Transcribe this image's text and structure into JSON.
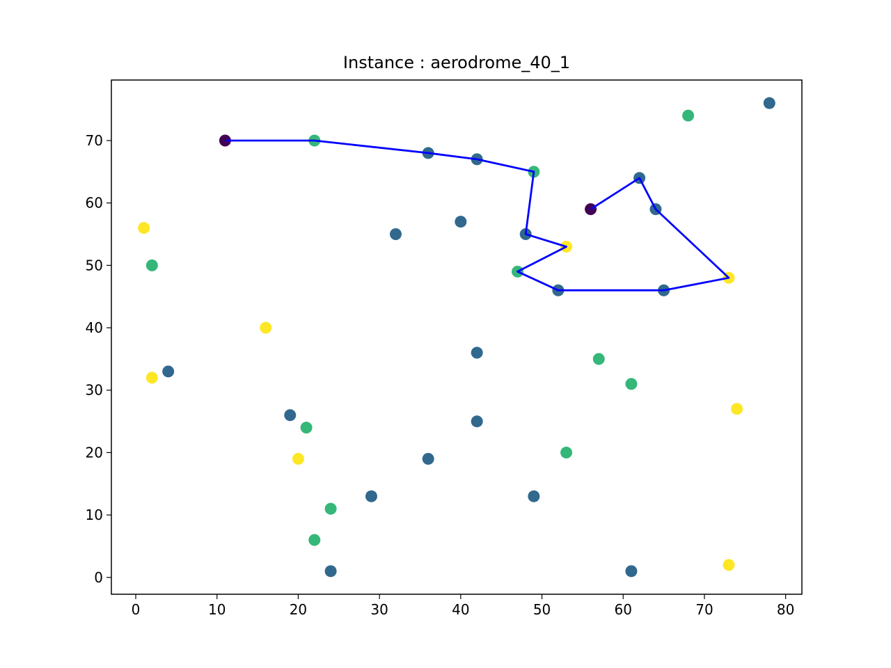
{
  "chart_data": {
    "type": "scatter",
    "title": "Instance : aerodrome_40_1",
    "xlabel": "",
    "ylabel": "",
    "xlim": [
      -3,
      82
    ],
    "ylim": [
      -2.7,
      79.7
    ],
    "xticks": [
      0,
      10,
      20,
      30,
      40,
      50,
      60,
      70,
      80
    ],
    "yticks": [
      0,
      10,
      20,
      30,
      40,
      50,
      60,
      70
    ],
    "grid": false,
    "legend": "none",
    "colors": {
      "yellow": "#fde725",
      "green": "#35b779",
      "blue": "#31688e",
      "purple": "#440154",
      "route": "#0000ff"
    },
    "points": [
      {
        "x": 11,
        "y": 70,
        "c": "purple"
      },
      {
        "x": 22,
        "y": 70,
        "c": "green"
      },
      {
        "x": 36,
        "y": 68,
        "c": "blue"
      },
      {
        "x": 42,
        "y": 67,
        "c": "blue"
      },
      {
        "x": 49,
        "y": 65,
        "c": "green"
      },
      {
        "x": 48,
        "y": 55,
        "c": "blue"
      },
      {
        "x": 53,
        "y": 53,
        "c": "yellow"
      },
      {
        "x": 47,
        "y": 49,
        "c": "green"
      },
      {
        "x": 52,
        "y": 46,
        "c": "blue"
      },
      {
        "x": 65,
        "y": 46,
        "c": "blue"
      },
      {
        "x": 73,
        "y": 48,
        "c": "yellow"
      },
      {
        "x": 64,
        "y": 59,
        "c": "blue"
      },
      {
        "x": 62,
        "y": 64,
        "c": "blue"
      },
      {
        "x": 56,
        "y": 59,
        "c": "purple"
      },
      {
        "x": 68,
        "y": 74,
        "c": "green"
      },
      {
        "x": 78,
        "y": 76,
        "c": "blue"
      },
      {
        "x": 1,
        "y": 56,
        "c": "yellow"
      },
      {
        "x": 2,
        "y": 50,
        "c": "green"
      },
      {
        "x": 32,
        "y": 55,
        "c": "blue"
      },
      {
        "x": 40,
        "y": 57,
        "c": "blue"
      },
      {
        "x": 16,
        "y": 40,
        "c": "yellow"
      },
      {
        "x": 2,
        "y": 32,
        "c": "yellow"
      },
      {
        "x": 4,
        "y": 33,
        "c": "blue"
      },
      {
        "x": 42,
        "y": 36,
        "c": "blue"
      },
      {
        "x": 57,
        "y": 35,
        "c": "green"
      },
      {
        "x": 61,
        "y": 31,
        "c": "green"
      },
      {
        "x": 74,
        "y": 27,
        "c": "yellow"
      },
      {
        "x": 19,
        "y": 26,
        "c": "blue"
      },
      {
        "x": 21,
        "y": 24,
        "c": "green"
      },
      {
        "x": 42,
        "y": 25,
        "c": "blue"
      },
      {
        "x": 20,
        "y": 19,
        "c": "yellow"
      },
      {
        "x": 36,
        "y": 19,
        "c": "blue"
      },
      {
        "x": 53,
        "y": 20,
        "c": "green"
      },
      {
        "x": 29,
        "y": 13,
        "c": "blue"
      },
      {
        "x": 49,
        "y": 13,
        "c": "blue"
      },
      {
        "x": 24,
        "y": 11,
        "c": "green"
      },
      {
        "x": 22,
        "y": 6,
        "c": "green"
      },
      {
        "x": 24,
        "y": 1,
        "c": "blue"
      },
      {
        "x": 61,
        "y": 1,
        "c": "blue"
      },
      {
        "x": 73,
        "y": 2,
        "c": "yellow"
      }
    ],
    "route": [
      [
        11,
        70
      ],
      [
        22,
        70
      ],
      [
        36,
        68
      ],
      [
        42,
        67
      ],
      [
        49,
        65
      ],
      [
        48,
        55
      ],
      [
        53,
        53
      ],
      [
        47,
        49
      ],
      [
        52,
        46
      ],
      [
        65,
        46
      ],
      [
        73,
        48
      ],
      [
        64,
        59
      ],
      [
        62,
        64
      ],
      [
        56,
        59
      ]
    ]
  }
}
